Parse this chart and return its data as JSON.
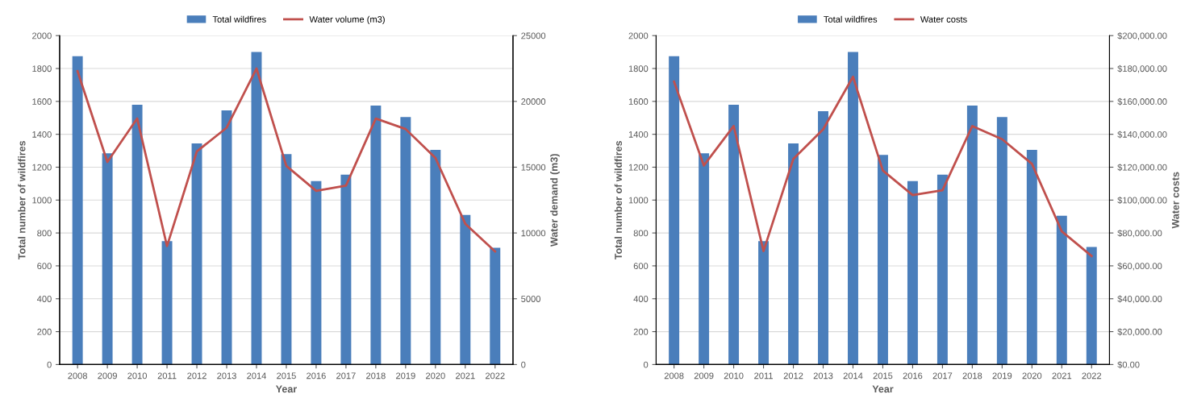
{
  "chart_data": [
    {
      "type": "bar",
      "xlabel": "Year",
      "ylabel": "Total number of wildfires",
      "y2label": "Water demand (m3)",
      "categories": [
        "2008",
        "2009",
        "2010",
        "2011",
        "2012",
        "2013",
        "2014",
        "2015",
        "2016",
        "2017",
        "2018",
        "2019",
        "2020",
        "2021",
        "2022"
      ],
      "series": [
        {
          "name": "Total wildfires",
          "color": "#4a7ebb",
          "values": [
            1875,
            1285,
            1580,
            750,
            1345,
            1545,
            1900,
            1280,
            1115,
            1155,
            1575,
            1505,
            1305,
            910,
            710
          ]
        },
        {
          "name": "Water volume (m3)",
          "type": "line",
          "axis": "y2",
          "color": "#c0504d",
          "values": [
            22300,
            15400,
            18700,
            9000,
            16200,
            18000,
            22500,
            15100,
            13200,
            13600,
            18700,
            17900,
            15700,
            10700,
            8600
          ]
        }
      ],
      "ylim": [
        0,
        2000
      ],
      "yticks": [
        0,
        200,
        400,
        600,
        800,
        1000,
        1200,
        1400,
        1600,
        1800,
        2000
      ],
      "y2lim": [
        0,
        25000
      ],
      "y2ticks": [
        0,
        5000,
        10000,
        15000,
        20000,
        25000
      ],
      "grid": "y",
      "legend": "top",
      "marker": "none",
      "line_style": "solid"
    },
    {
      "type": "bar",
      "xlabel": "Year",
      "ylabel": "Total number of wildfires",
      "y2label": "Water costs",
      "categories": [
        "2008",
        "2009",
        "2010",
        "2011",
        "2012",
        "2013",
        "2014",
        "2015",
        "2016",
        "2017",
        "2018",
        "2019",
        "2020",
        "2021",
        "2022"
      ],
      "series": [
        {
          "name": "Total wildfires",
          "color": "#4a7ebb",
          "values": [
            1875,
            1285,
            1580,
            750,
            1345,
            1540,
            1900,
            1275,
            1115,
            1155,
            1575,
            1505,
            1305,
            905,
            715
          ]
        },
        {
          "name": "Water costs",
          "type": "line",
          "axis": "y2",
          "color": "#c0504d",
          "values": [
            172000,
            121000,
            145000,
            69000,
            125000,
            143000,
            175000,
            118000,
            103000,
            106000,
            145000,
            137000,
            122000,
            81000,
            66000
          ]
        }
      ],
      "ylim": [
        0,
        2000
      ],
      "yticks": [
        0,
        200,
        400,
        600,
        800,
        1000,
        1200,
        1400,
        1600,
        1800,
        2000
      ],
      "y2lim": [
        0,
        200000
      ],
      "y2ticks": [
        {
          "value": 0,
          "label": "$0.00"
        },
        {
          "value": 20000,
          "label": "$20,000.00"
        },
        {
          "value": 40000,
          "label": "$40,000.00"
        },
        {
          "value": 60000,
          "label": "$60,000.00"
        },
        {
          "value": 80000,
          "label": "$80,000.00"
        },
        {
          "value": 100000,
          "label": "$100,000.00"
        },
        {
          "value": 120000,
          "label": "$120,000.00"
        },
        {
          "value": 140000,
          "label": "$140,000.00"
        },
        {
          "value": 160000,
          "label": "$160,000.00"
        },
        {
          "value": 180000,
          "label": "$180,000.00"
        },
        {
          "value": 200000,
          "label": "$200,000.00"
        }
      ],
      "grid": "y",
      "legend": "top",
      "marker": "none",
      "line_style": "solid"
    }
  ]
}
